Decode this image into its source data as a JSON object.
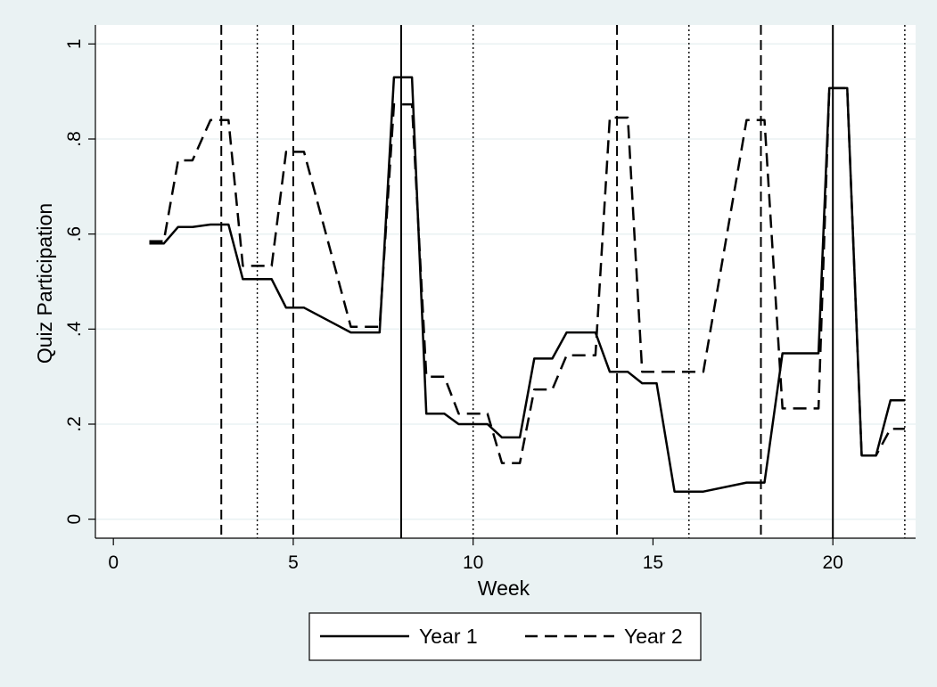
{
  "chart_data": {
    "type": "line",
    "xlabel": "Week",
    "ylabel": "Quiz Participation",
    "xlim": [
      -0.5,
      22.3
    ],
    "ylim": [
      -0.04,
      1.04
    ],
    "xticks": [
      {
        "value": 0,
        "label": "0"
      },
      {
        "value": 5,
        "label": "5"
      },
      {
        "value": 10,
        "label": "10"
      },
      {
        "value": 15,
        "label": "15"
      },
      {
        "value": 20,
        "label": "20"
      }
    ],
    "yticks": [
      {
        "value": 0,
        "label": "0"
      },
      {
        "value": 0.2,
        "label": ".2"
      },
      {
        "value": 0.4,
        "label": ".4"
      },
      {
        "value": 0.6,
        "label": ".6"
      },
      {
        "value": 0.8,
        "label": ".8"
      },
      {
        "value": 1,
        "label": "1"
      }
    ],
    "grid": true,
    "legend_position": "bottom",
    "series": [
      {
        "name": "Year 1",
        "style": "solid",
        "color": "#000000",
        "points": [
          [
            1,
            0.58
          ],
          [
            1.4,
            0.58
          ],
          [
            1.8,
            0.615
          ],
          [
            2.2,
            0.615
          ],
          [
            2.7,
            0.62
          ],
          [
            3.2,
            0.62
          ],
          [
            3.6,
            0.505
          ],
          [
            4.4,
            0.505
          ],
          [
            4.8,
            0.445
          ],
          [
            5.3,
            0.445
          ],
          [
            6.6,
            0.393
          ],
          [
            7.4,
            0.393
          ],
          [
            7.8,
            0.93
          ],
          [
            8.3,
            0.93
          ],
          [
            8.7,
            0.222
          ],
          [
            9.2,
            0.222
          ],
          [
            9.6,
            0.2
          ],
          [
            10.4,
            0.2
          ],
          [
            10.8,
            0.172
          ],
          [
            11.3,
            0.172
          ],
          [
            11.7,
            0.338
          ],
          [
            12.2,
            0.338
          ],
          [
            12.6,
            0.393
          ],
          [
            13.4,
            0.393
          ],
          [
            13.8,
            0.31
          ],
          [
            14.3,
            0.31
          ],
          [
            14.7,
            0.286
          ],
          [
            15.1,
            0.286
          ],
          [
            15.6,
            0.058
          ],
          [
            16.4,
            0.058
          ],
          [
            17.6,
            0.077
          ],
          [
            18.1,
            0.077
          ],
          [
            18.6,
            0.349
          ],
          [
            19.6,
            0.349
          ],
          [
            19.9,
            0.907
          ],
          [
            20.4,
            0.907
          ],
          [
            20.8,
            0.134
          ],
          [
            21.2,
            0.134
          ],
          [
            21.6,
            0.25
          ],
          [
            22,
            0.25
          ]
        ]
      },
      {
        "name": "Year 2",
        "style": "dashed",
        "color": "#000000",
        "points": [
          [
            1,
            0.585
          ],
          [
            1.4,
            0.585
          ],
          [
            1.8,
            0.755
          ],
          [
            2.2,
            0.755
          ],
          [
            2.7,
            0.84
          ],
          [
            3.2,
            0.84
          ],
          [
            3.6,
            0.533
          ],
          [
            4.4,
            0.533
          ],
          [
            4.8,
            0.773
          ],
          [
            5.3,
            0.773
          ],
          [
            6.6,
            0.405
          ],
          [
            7.4,
            0.405
          ],
          [
            7.8,
            0.873
          ],
          [
            8.3,
            0.873
          ],
          [
            8.7,
            0.3
          ],
          [
            9.2,
            0.3
          ],
          [
            9.6,
            0.222
          ],
          [
            10.4,
            0.222
          ],
          [
            10.8,
            0.118
          ],
          [
            11.3,
            0.118
          ],
          [
            11.7,
            0.273
          ],
          [
            12.2,
            0.273
          ],
          [
            12.6,
            0.345
          ],
          [
            13.4,
            0.345
          ],
          [
            13.8,
            0.845
          ],
          [
            14.3,
            0.845
          ],
          [
            14.7,
            0.31
          ],
          [
            16.4,
            0.31
          ],
          [
            17.6,
            0.84
          ],
          [
            18.1,
            0.84
          ],
          [
            18.6,
            0.233
          ],
          [
            19.6,
            0.233
          ],
          [
            19.9,
            0.907
          ],
          [
            20.4,
            0.907
          ],
          [
            20.8,
            0.134
          ],
          [
            21.2,
            0.134
          ],
          [
            21.6,
            0.19
          ],
          [
            22,
            0.19
          ]
        ]
      }
    ],
    "vertical_lines": [
      {
        "x": 3,
        "style": "dashed"
      },
      {
        "x": 4,
        "style": "dotted"
      },
      {
        "x": 5,
        "style": "dashed"
      },
      {
        "x": 8,
        "style": "solid"
      },
      {
        "x": 10,
        "style": "dotted"
      },
      {
        "x": 14,
        "style": "dashed"
      },
      {
        "x": 16,
        "style": "dotted"
      },
      {
        "x": 18,
        "style": "dashed"
      },
      {
        "x": 20,
        "style": "solid"
      },
      {
        "x": 22,
        "style": "dotted"
      }
    ],
    "colors": {
      "background": "#eaf2f3",
      "plot_area": "#ffffff",
      "grid": "#eaf2f3",
      "line": "#000000"
    }
  }
}
